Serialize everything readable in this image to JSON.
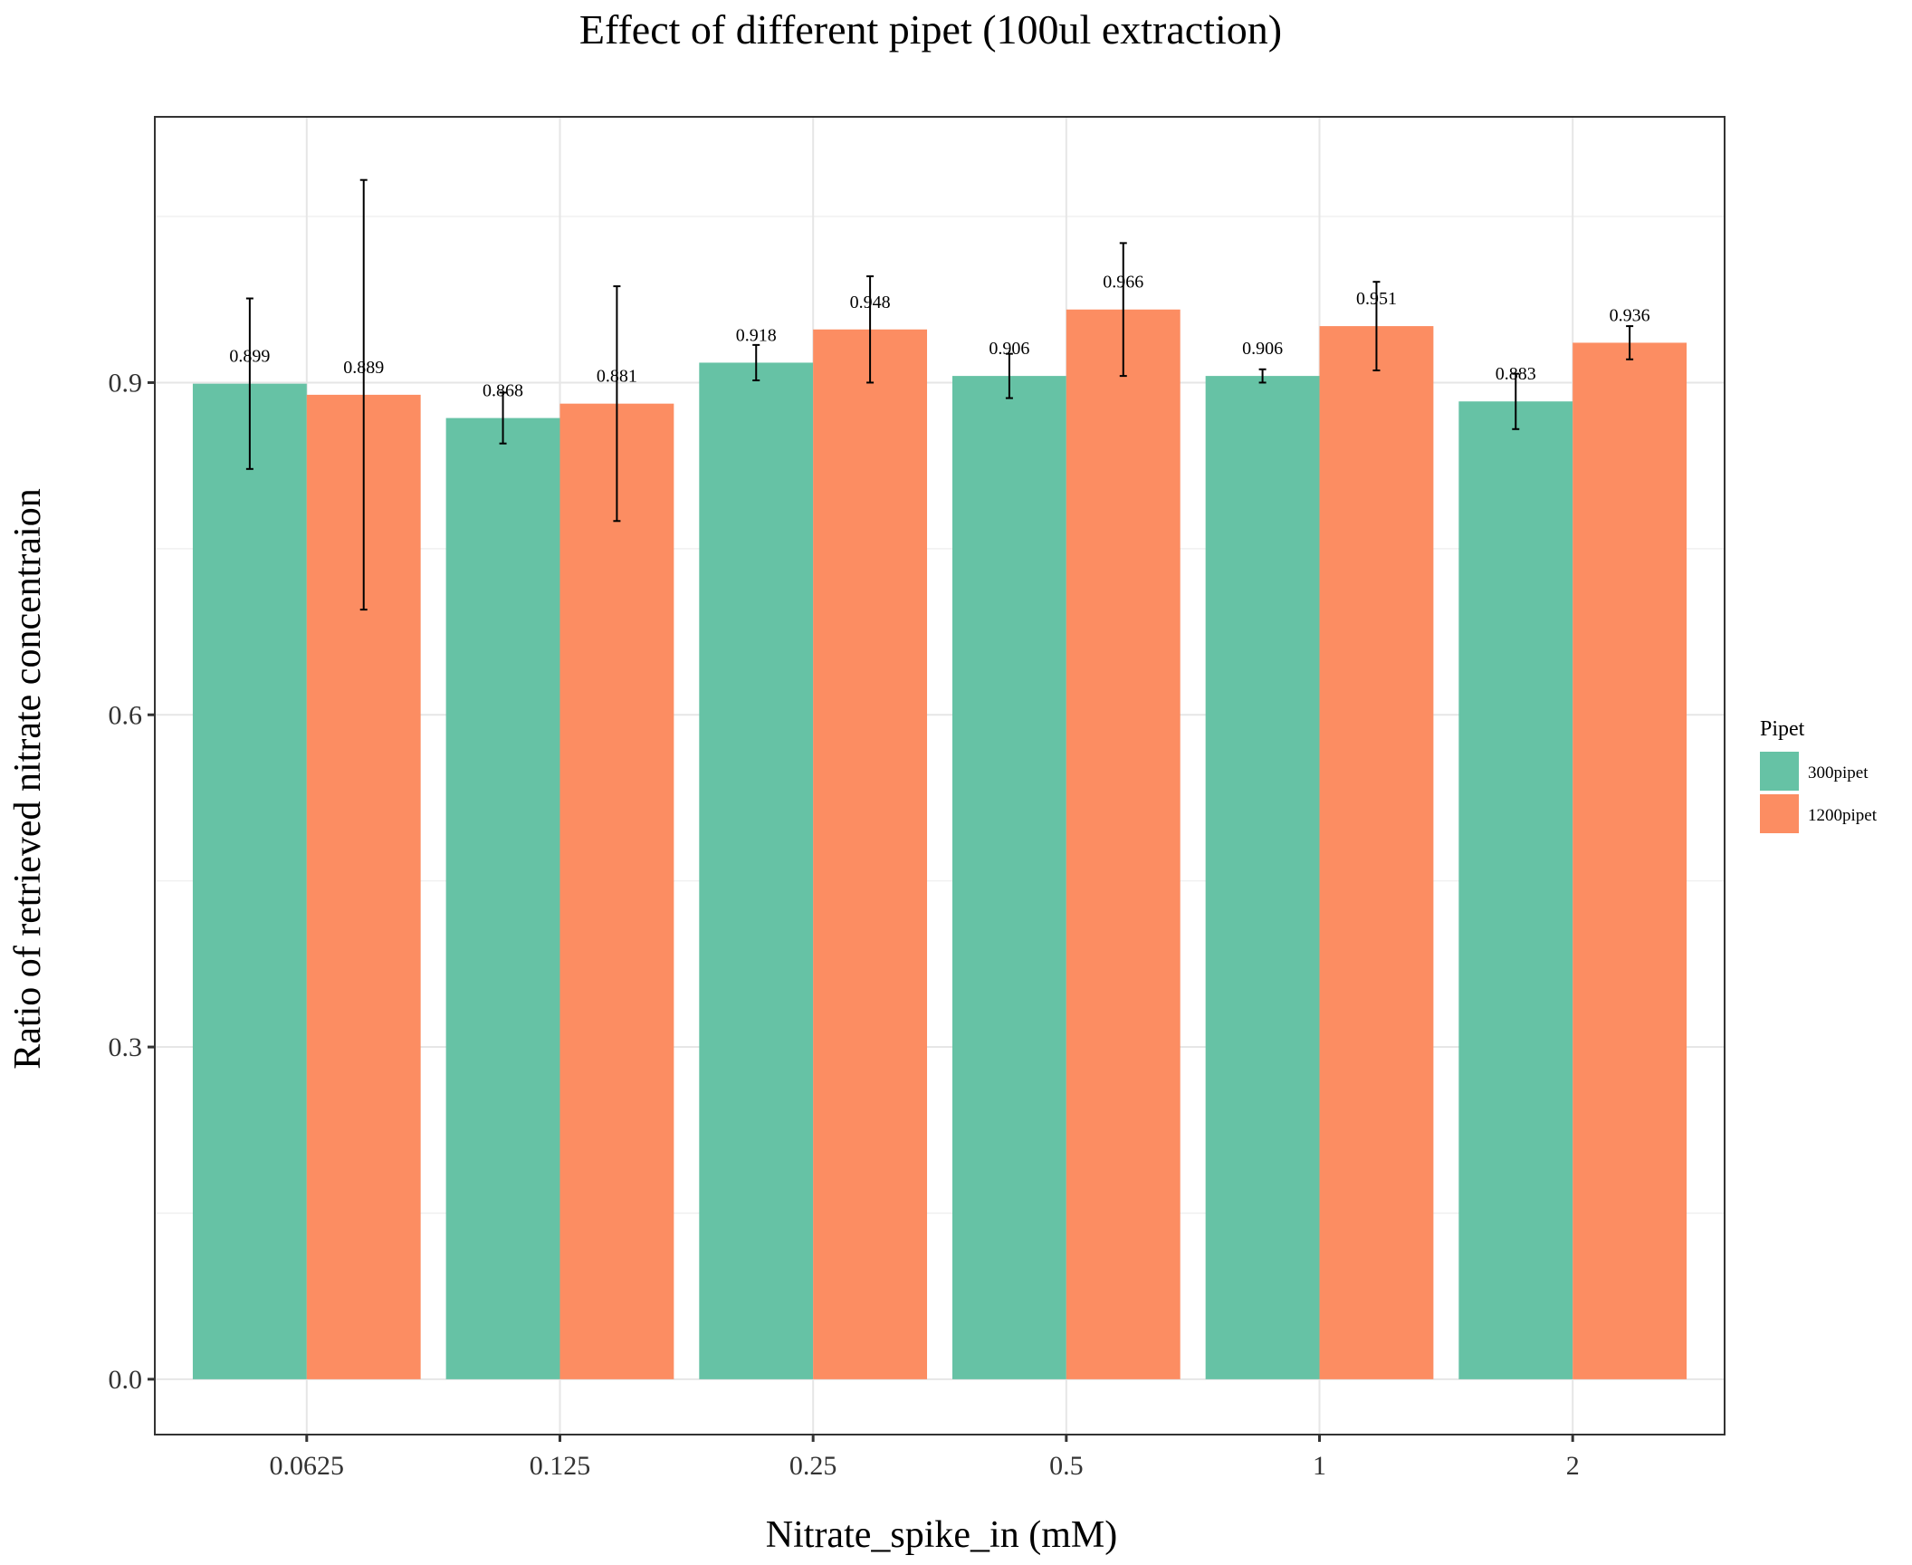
{
  "chart_data": {
    "type": "bar",
    "title": "Effect of different pipet (100ul extraction)",
    "xlabel": "Nitrate_spike_in (mM)",
    "ylabel": "Ratio of retrieved nitrate concentraion",
    "categories": [
      "0.0625",
      "0.125",
      "0.25",
      "0.5",
      "1",
      "2"
    ],
    "ylim": [
      -0.05,
      1.14
    ],
    "yticks": [
      0.0,
      0.3,
      0.6,
      0.9
    ],
    "ytick_labels": [
      "0.0",
      "0.3",
      "0.6",
      "0.9"
    ],
    "grid": true,
    "legend": {
      "title": "Pipet",
      "position": "right"
    },
    "series": [
      {
        "name": "300pipet",
        "color": "#66c2a5",
        "values": [
          0.899,
          0.868,
          0.918,
          0.906,
          0.906,
          0.883
        ],
        "labels": [
          "0.899",
          "0.868",
          "0.918",
          "0.906",
          "0.906",
          "0.883"
        ],
        "err_low": [
          0.822,
          0.845,
          0.902,
          0.886,
          0.9,
          0.858
        ],
        "err_high": [
          0.976,
          0.891,
          0.934,
          0.926,
          0.912,
          0.908
        ]
      },
      {
        "name": "1200pipet",
        "color": "#fc8d62",
        "values": [
          0.889,
          0.881,
          0.948,
          0.966,
          0.951,
          0.936
        ],
        "labels": [
          "0.889",
          "0.881",
          "0.948",
          "0.966",
          "0.951",
          "0.936"
        ],
        "err_low": [
          0.695,
          0.775,
          0.9,
          0.906,
          0.911,
          0.921
        ],
        "err_high": [
          1.083,
          0.987,
          0.996,
          1.026,
          0.991,
          0.951
        ]
      }
    ]
  }
}
